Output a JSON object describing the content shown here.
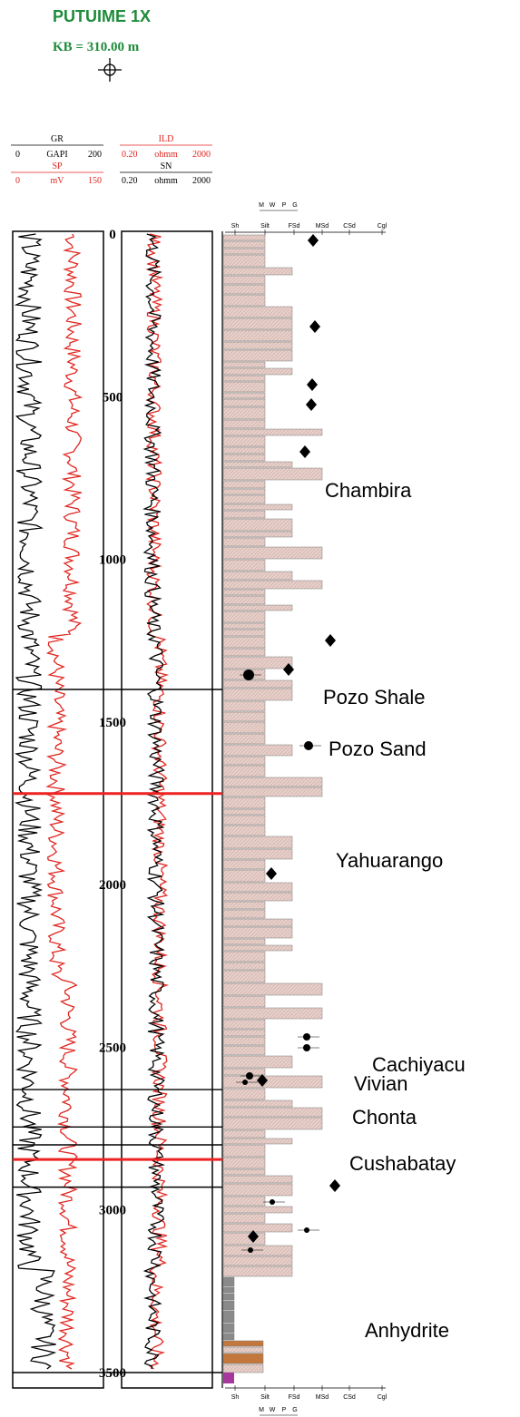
{
  "well": {
    "name": "PUTUIME 1X",
    "kb": "KB = 310.00 m"
  },
  "curve_headers": {
    "gr": {
      "name": "GR",
      "min": "0",
      "unit": "GAPI",
      "max": "200",
      "color": "#000000"
    },
    "sp": {
      "name": "SP",
      "min": "0",
      "unit": "mV",
      "max": "150",
      "color": "#e0251f"
    },
    "ild": {
      "name": "ILD",
      "min": "0.20",
      "unit": "ohmm",
      "max": "2000",
      "color": "#e0251f"
    },
    "sn": {
      "name": "SN",
      "min": "0.20",
      "unit": "ohmm",
      "max": "2000",
      "color": "#000000"
    }
  },
  "grain_scale": {
    "labels": [
      "Sh",
      "Silt",
      "FSd",
      "MSd",
      "CSd",
      "Cgl"
    ],
    "sorting": [
      "M",
      "W",
      "P",
      "G"
    ]
  },
  "depth_ticks": [
    "0",
    "500",
    "1000",
    "1500",
    "2000",
    "2500",
    "3000",
    "3500"
  ],
  "depth_range": [
    0,
    3700
  ],
  "formations": [
    {
      "name": "Chambira",
      "top": 0
    },
    {
      "name": "Pozo Shale",
      "top": 1400
    },
    {
      "name": "Pozo Sand",
      "top": 1720
    },
    {
      "name": "Yahuarango",
      "top": 1720
    },
    {
      "name": "Cachiyacu",
      "top": 2640
    },
    {
      "name": "Vivian",
      "top": 2800
    },
    {
      "name": "Chonta",
      "top": 2860
    },
    {
      "name": "Cushabatay",
      "top": 2930
    },
    {
      "name": "Anhydrite",
      "top": 3500
    }
  ],
  "colors": {
    "gr_curve": "#000000",
    "sp_curve": "#e0251f",
    "boundary_red": "#ee2222",
    "title_green": "#1e8b3a",
    "shale_pink": "#e6cbc4",
    "sand_grey": "#d0d0d0",
    "anhydrite": "#a6389c"
  }
}
